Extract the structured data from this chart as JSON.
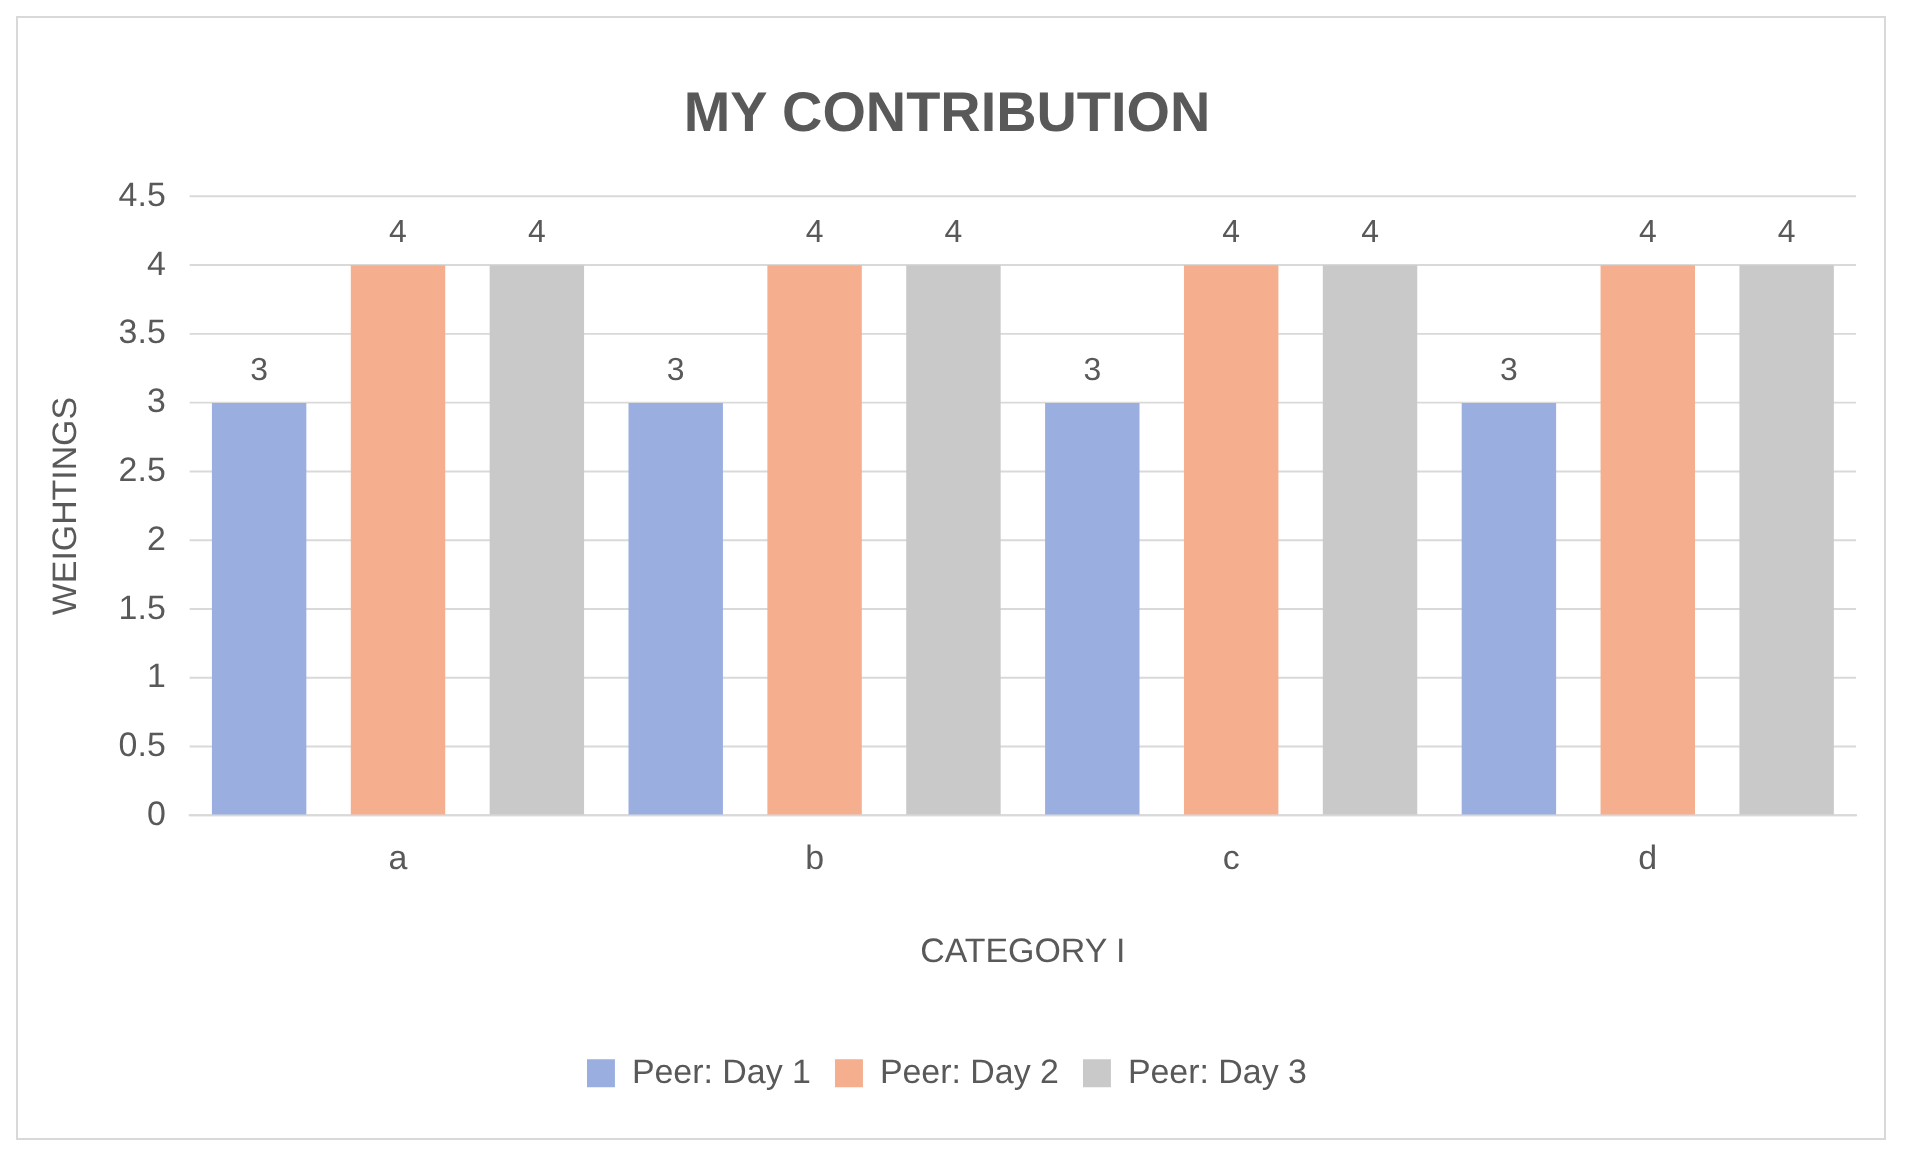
{
  "chart_data": {
    "type": "bar",
    "title": "MY CONTRIBUTION",
    "xlabel": "CATEGORY I",
    "ylabel": "WEIGHTINGS",
    "categories": [
      "a",
      "b",
      "c",
      "d"
    ],
    "series": [
      {
        "name": "Peer: Day 1",
        "color": "#9aaee0",
        "values": [
          3,
          3,
          3,
          3
        ]
      },
      {
        "name": "Peer: Day 2",
        "color": "#f5ae8e",
        "values": [
          4,
          4,
          4,
          4
        ]
      },
      {
        "name": "Peer: Day 3",
        "color": "#c9c9c9",
        "values": [
          4,
          4,
          4,
          4
        ]
      }
    ],
    "ylim": [
      0,
      4.5
    ],
    "yticks": [
      0,
      0.5,
      1,
      1.5,
      2,
      2.5,
      3,
      3.5,
      4,
      4.5
    ],
    "grid": "y",
    "legend": "bottom",
    "data_labels": true
  }
}
